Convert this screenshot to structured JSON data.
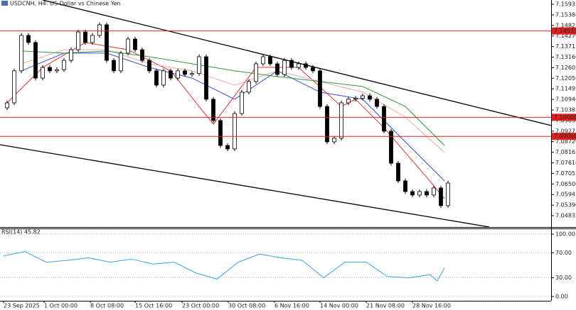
{
  "chart_data": [
    {
      "type": "candlestick",
      "title": "USDCNH, H4:  US Dollar vs Chinese Yen",
      "ylim": [
        7.0424,
        7.1616
      ],
      "xlim": [
        -0.5,
        77
      ],
      "grid": false,
      "bull_color": "#ffffff",
      "bear_color": "#000000",
      "yticks": [
        7.15935,
        {
          "value": 7.1538,
          "label": "7.15380"
        },
        7.14825,
        {
          "value": 7.1427,
          "label": "7.14270"
        },
        7.13715,
        {
          "value": 7.1316,
          "label": "7.13160"
        },
        7.12605,
        {
          "value": 7.1205,
          "label": "7.12050"
        },
        7.11495,
        {
          "value": 7.1094,
          "label": "7.10940"
        },
        7.10385,
        {
          "value": 7.0983,
          "label": "7.09830"
        },
        7.09275,
        {
          "value": 7.0872,
          "label": "7.08720"
        },
        7.08165,
        {
          "value": 7.0761,
          "label": "7.07610"
        },
        7.07055,
        {
          "value": 7.065,
          "label": "7.06500"
        },
        7.05945,
        {
          "value": 7.0539,
          "label": "7.05390"
        },
        7.04835
      ],
      "xticks": [
        {
          "value": 0,
          "label": "23 Sep 2025"
        },
        {
          "value": 5.7,
          "label": "1 Oct 00:00"
        },
        {
          "value": 12.2,
          "label": "8 Oct 08:00"
        },
        {
          "value": 18.5,
          "label": "15 Oct 16:00"
        },
        {
          "value": 25.1,
          "label": "23 Oct 00:00"
        },
        {
          "value": 31.6,
          "label": "30 Oct 08:00"
        },
        {
          "value": 38.1,
          "label": "6 Nov 16:00"
        },
        {
          "value": 44.5,
          "label": "14 Nov 00:00"
        },
        {
          "value": 51,
          "label": "21 Nov 08:00"
        },
        {
          "value": 57.5,
          "label": "28 Nov 16:00"
        }
      ],
      "open": [
        7.105,
        7.1076,
        7.1244,
        7.143,
        7.1393,
        7.1206,
        7.1262,
        7.1244,
        7.125,
        7.1299,
        7.1355,
        7.1448,
        7.1393,
        7.143,
        7.1486,
        7.1299,
        7.1244,
        7.1337,
        7.1411,
        7.1355,
        7.1299,
        7.1244,
        7.1169,
        7.1244,
        7.1206,
        7.1244,
        7.1225,
        7.123,
        7.1318,
        7.1095,
        7.0983,
        7.0852,
        7.0834,
        7.102,
        7.1132,
        7.1188,
        7.1281,
        7.1318,
        7.1281,
        7.1225,
        7.1299,
        7.1262,
        7.1281,
        7.1262,
        7.1244,
        7.1057,
        7.0871,
        7.089,
        7.1076,
        7.1095,
        7.11,
        7.1113,
        7.1095,
        7.1057,
        7.0927,
        7.0759,
        7.0666,
        7.061,
        7.0592,
        7.061,
        7.0592,
        7.0629,
        7.0536
      ],
      "high": [
        7.1088,
        7.1256,
        7.1442,
        7.1442,
        7.1405,
        7.1274,
        7.1274,
        7.1262,
        7.1311,
        7.1367,
        7.146,
        7.146,
        7.1442,
        7.1498,
        7.1498,
        7.1311,
        7.1349,
        7.1423,
        7.1423,
        7.1367,
        7.1311,
        7.1256,
        7.1256,
        7.1256,
        7.1256,
        7.1256,
        7.1242,
        7.133,
        7.133,
        7.1107,
        7.0995,
        7.0864,
        7.1032,
        7.1144,
        7.12,
        7.1293,
        7.133,
        7.133,
        7.1293,
        7.1311,
        7.1311,
        7.1293,
        7.1293,
        7.1274,
        7.1256,
        7.1069,
        7.0902,
        7.1088,
        7.1107,
        7.1112,
        7.1125,
        7.1125,
        7.1107,
        7.1069,
        7.0939,
        7.0771,
        7.0678,
        7.0622,
        7.0622,
        7.0622,
        7.0641,
        7.0641,
        7.0667
      ],
      "low": [
        7.1038,
        7.1064,
        7.1232,
        7.1381,
        7.1194,
        7.1194,
        7.1232,
        7.1232,
        7.1238,
        7.1287,
        7.1343,
        7.1381,
        7.1381,
        7.1418,
        7.1287,
        7.1232,
        7.1232,
        7.1325,
        7.1343,
        7.1287,
        7.1232,
        7.1157,
        7.1157,
        7.1194,
        7.1194,
        7.1213,
        7.1213,
        7.1218,
        7.1083,
        7.0971,
        7.084,
        7.0822,
        7.0822,
        7.1008,
        7.112,
        7.1176,
        7.1269,
        7.1269,
        7.1213,
        7.1213,
        7.125,
        7.125,
        7.125,
        7.1232,
        7.1045,
        7.0859,
        7.0859,
        7.0878,
        7.1064,
        7.1083,
        7.1088,
        7.1083,
        7.1045,
        7.0915,
        7.0747,
        7.0654,
        7.0598,
        7.058,
        7.058,
        7.058,
        7.058,
        7.0524,
        7.0524
      ],
      "close": [
        7.1076,
        7.1244,
        7.143,
        7.1393,
        7.1206,
        7.1262,
        7.1244,
        7.125,
        7.1299,
        7.1355,
        7.1448,
        7.1393,
        7.143,
        7.1486,
        7.1299,
        7.1244,
        7.1337,
        7.1411,
        7.1355,
        7.1299,
        7.1244,
        7.1169,
        7.1244,
        7.1206,
        7.1244,
        7.1225,
        7.123,
        7.1318,
        7.1095,
        7.0983,
        7.0852,
        7.0834,
        7.102,
        7.1132,
        7.1188,
        7.1281,
        7.1318,
        7.1281,
        7.1225,
        7.1299,
        7.1262,
        7.1281,
        7.1262,
        7.1244,
        7.1057,
        7.0871,
        7.089,
        7.1076,
        7.1095,
        7.11,
        7.1113,
        7.1095,
        7.1057,
        7.0927,
        7.0759,
        7.0666,
        7.061,
        7.0592,
        7.061,
        7.0592,
        7.0629,
        7.0536,
        7.0655
      ],
      "series": [
        {
          "color": "#e03030",
          "x": [
            0.5,
            5.5,
            11.5,
            17.5,
            23.5,
            29.5,
            35.5,
            41.5,
            47.5,
            49.5,
            53.5,
            59.5,
            62
          ],
          "values": [
            7.1076,
            7.1262,
            7.1393,
            7.1355,
            7.1244,
            7.0964,
            7.1262,
            7.1262,
            7.1057,
            7.1095,
            7.0945,
            7.0685,
            7.0573
          ]
        },
        {
          "color": "#3a4fd0",
          "x": [
            2.5,
            8.5,
            14.5,
            20.5,
            26.5,
            32.5,
            38.5,
            44.5,
            50.5,
            56.5,
            62
          ],
          "values": [
            7.1244,
            7.1337,
            7.1337,
            7.1262,
            7.1206,
            7.1095,
            7.1244,
            7.1132,
            7.1095,
            7.0871,
            7.0666
          ]
        },
        {
          "color": "#f2a8a8",
          "x": [
            2.5,
            8.5,
            14.5,
            20.5,
            26.5,
            32.5,
            38.5,
            44.5,
            50.5,
            56.5,
            62
          ],
          "values": [
            7.1281,
            7.1355,
            7.1355,
            7.1281,
            7.1244,
            7.1169,
            7.1244,
            7.1188,
            7.1132,
            7.1001,
            7.0815
          ]
        },
        {
          "color": "#2e9a3a",
          "x": [
            2.5,
            8.5,
            14.5,
            20.5,
            26.5,
            32.5,
            38.5,
            44.5,
            50.5,
            56.5,
            62
          ],
          "values": [
            7.1348,
            7.1337,
            7.1348,
            7.1318,
            7.1281,
            7.1244,
            7.1214,
            7.1188,
            7.1162,
            7.1057,
            7.0852
          ]
        }
      ],
      "levels": [
        7.14533,
        {
          "value": 7.1,
          "label": "7.10000"
        },
        {
          "value": 7.09,
          "label": "7.09000"
        }
      ],
      "level_color": "#e02020",
      "trendlines": [
        {
          "x": [
            5.5,
            77
          ],
          "values": [
            7.1616,
            7.0957
          ]
        },
        {
          "x": [
            -0.5,
            68.3
          ],
          "values": [
            7.0856,
            7.0424
          ]
        }
      ]
    },
    {
      "type": "line",
      "title": "RSI(14) 45.82",
      "ylim": [
        0,
        100
      ],
      "xlim": [
        -0.5,
        77
      ],
      "grid": true,
      "color": "#3fa0e0",
      "yticks": [
        {
          "value": 100,
          "label": "100.00"
        },
        {
          "value": 70,
          "label": "70.00"
        },
        {
          "value": 30,
          "label": "30.00"
        },
        {
          "value": 0,
          "label": "0.00"
        }
      ],
      "x": [
        0,
        3,
        6,
        9,
        12,
        15,
        18,
        21,
        24,
        27,
        30,
        33,
        36,
        39,
        42,
        45,
        48,
        51,
        54,
        57,
        60,
        61,
        62
      ],
      "values": [
        65,
        72,
        55,
        58,
        62,
        55,
        60,
        52,
        55,
        38,
        28,
        55,
        68,
        62,
        58,
        30,
        55,
        55,
        32,
        30,
        35,
        25,
        45.82
      ]
    }
  ]
}
